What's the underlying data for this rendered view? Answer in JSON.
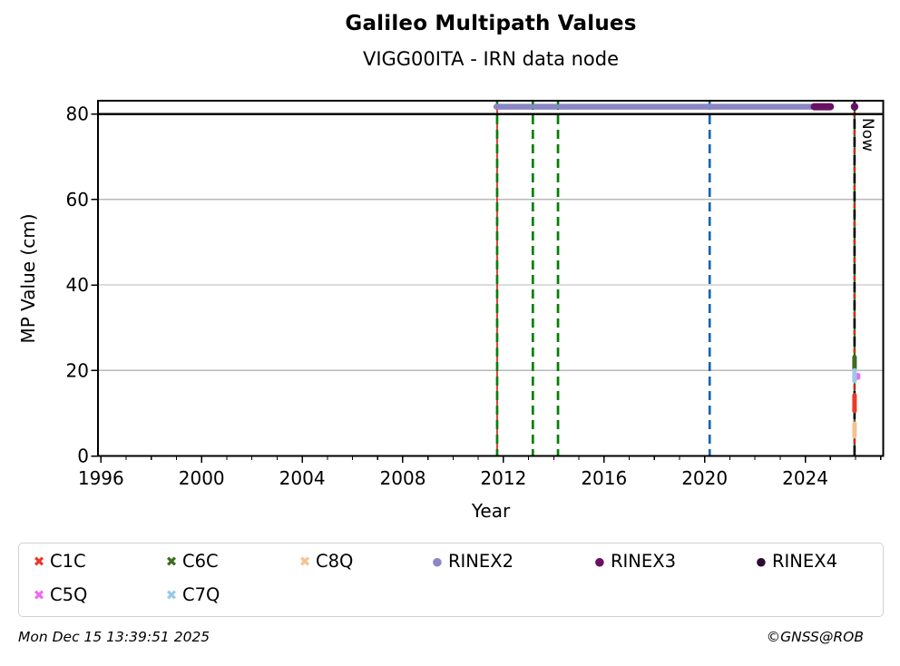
{
  "footer": {
    "timestamp": "Mon Dec 15 13:39:51 2025",
    "copyright": "©GNSS@ROB"
  },
  "chart_data": {
    "type": "scatter",
    "title": "Galileo Multipath Values",
    "subtitle": "VIGG00ITA - IRN data node",
    "xlabel": "Year",
    "ylabel": "MP Value (cm)",
    "xlim": [
      1995.88,
      2027.1
    ],
    "ylim": [
      0,
      83.1
    ],
    "x_major_ticks": [
      1996,
      2000,
      2004,
      2008,
      2012,
      2016,
      2020,
      2024
    ],
    "x_minor_tick_step_years": 1,
    "y_ticks": [
      0,
      20,
      40,
      60,
      80
    ],
    "grid": {
      "horizontal": true,
      "color": "#b9b9b9"
    },
    "cutoff_line": {
      "y": 80,
      "color": "#000000"
    },
    "now_label": "Now",
    "event_lines": [
      {
        "x": 2011.75,
        "style": "dashed",
        "color": "#008000",
        "underlay_color": "#e81c1c"
      },
      {
        "x": 2013.17,
        "style": "dashed",
        "color": "#008000"
      },
      {
        "x": 2014.17,
        "style": "dashed",
        "color": "#008000"
      },
      {
        "x": 2020.2,
        "style": "dashed",
        "color": "#1565b3"
      },
      {
        "x": 2025.96,
        "style": "now-line",
        "colors": [
          "#008000",
          "#000000",
          "#e81c1c"
        ],
        "label": "Now"
      }
    ],
    "series": [
      {
        "name": "C1C",
        "marker": "x",
        "color": "#e8392b",
        "clusters": [
          {
            "x": 2025.96,
            "y_min": 10.5,
            "y_max": 14.2
          }
        ]
      },
      {
        "name": "C5Q",
        "marker": "x",
        "color": "#ef6af0",
        "clusters": [
          {
            "x": 2026.1,
            "y_min": 18.3,
            "y_max": 18.9
          }
        ]
      },
      {
        "name": "C6C",
        "marker": "x",
        "color": "#3e6d20",
        "clusters": [
          {
            "x": 2025.96,
            "y_min": 20.5,
            "y_max": 23.1
          }
        ]
      },
      {
        "name": "C7Q",
        "marker": "x",
        "color": "#9cc8e8",
        "clusters": [
          {
            "x": 2025.96,
            "y_min": 17.5,
            "y_max": 20.0
          }
        ]
      },
      {
        "name": "C8Q",
        "marker": "x",
        "color": "#f4c391",
        "clusters": [
          {
            "x": 2025.96,
            "y_min": 4.6,
            "y_max": 7.5
          }
        ]
      },
      {
        "name": "RINEX2",
        "marker": "circle",
        "color": "#8b87c6",
        "band_y": 81.7,
        "band_segments": [
          [
            2011.72,
            2013.08
          ],
          [
            2013.25,
            2014.08
          ],
          [
            2014.25,
            2024.33
          ]
        ]
      },
      {
        "name": "RINEX3",
        "marker": "circle",
        "color": "#6a1062",
        "band_y": 81.7,
        "band_segments": [
          [
            2024.36,
            2025.0
          ]
        ],
        "points": [
          {
            "x": 2025.96,
            "y": 81.7
          }
        ]
      },
      {
        "name": "RINEX4",
        "marker": "circle",
        "color": "#2a0d35"
      }
    ],
    "legend": {
      "rows": [
        [
          "C1C",
          "C6C",
          "C8Q",
          "RINEX2",
          "RINEX3",
          "RINEX4"
        ],
        [
          "C5Q",
          "C7Q"
        ]
      ]
    }
  }
}
